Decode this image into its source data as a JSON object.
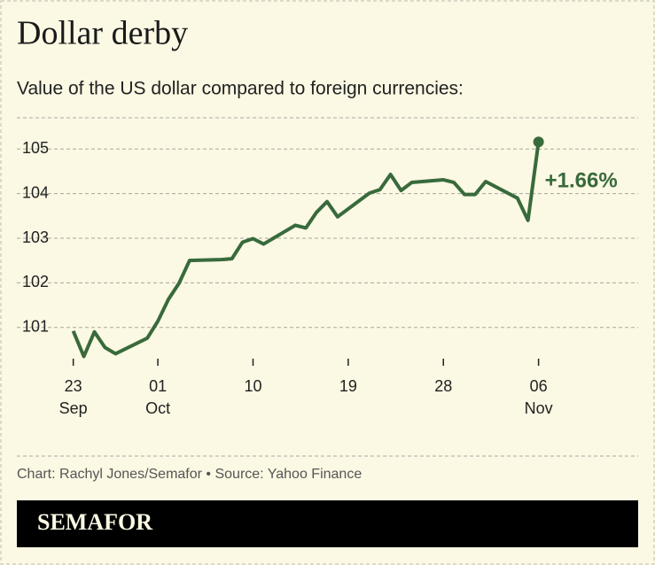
{
  "chart_data": {
    "type": "line",
    "title": "Dollar derby",
    "subtitle": "Value of the US dollar compared to foreign currencies:",
    "x": [
      "09-23",
      "09-24",
      "09-25",
      "09-26",
      "09-27",
      "09-30",
      "10-01",
      "10-02",
      "10-03",
      "10-04",
      "10-07",
      "10-08",
      "10-09",
      "10-10",
      "10-11",
      "10-14",
      "10-15",
      "10-16",
      "10-17",
      "10-18",
      "10-21",
      "10-22",
      "10-23",
      "10-24",
      "10-25",
      "10-28",
      "10-29",
      "10-30",
      "10-31",
      "11-01",
      "11-04",
      "11-05",
      "11-06"
    ],
    "series": [
      {
        "color": "#386a3c",
        "values": [
          100.92,
          100.35,
          100.9,
          100.55,
          100.41,
          100.76,
          101.14,
          101.63,
          101.99,
          102.5,
          102.52,
          102.54,
          102.91,
          102.99,
          102.87,
          103.29,
          103.23,
          103.58,
          103.82,
          103.48,
          104.01,
          104.09,
          104.43,
          104.07,
          104.25,
          104.31,
          104.25,
          103.98,
          103.98,
          104.27,
          103.9,
          103.4,
          105.16
        ]
      }
    ],
    "annotation": "+1.66%",
    "xlim": [
      "09-18",
      "11-15"
    ],
    "xticks": [
      {
        "value": "09-23",
        "label": [
          "23",
          "Sep"
        ]
      },
      {
        "value": "10-01",
        "label": [
          "01",
          "Oct"
        ]
      },
      {
        "value": "10-10",
        "label": [
          "10"
        ]
      },
      {
        "value": "10-19",
        "label": [
          "19"
        ]
      },
      {
        "value": "10-28",
        "label": [
          "28"
        ]
      },
      {
        "value": "11-06",
        "label": [
          "06",
          "Nov"
        ]
      }
    ],
    "ylim": [
      100.3,
      105.7
    ],
    "yticks": [
      101,
      102,
      103,
      104,
      105
    ],
    "grid": true,
    "source": "Chart: Rachyl Jones/Semafor • Source: Yahoo Finance",
    "brand": "SEMAFOR"
  }
}
